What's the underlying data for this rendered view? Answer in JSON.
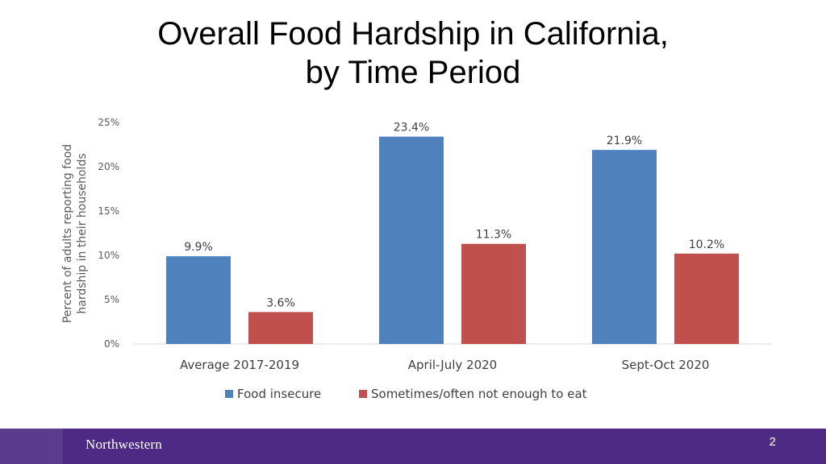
{
  "slide": {
    "title_line1": "Overall Food Hardship in California,",
    "title_line2": "by Time Period",
    "page_number": "2",
    "footer_logo": "Northwestern"
  },
  "colors": {
    "series_food_insecure": "#4f81bd",
    "series_not_enough": "#c0504d",
    "footer_bg": "#4e2a84"
  },
  "chart_data": {
    "type": "bar",
    "title": "Overall Food Hardship in California, by Time Period",
    "categories": [
      "Average 2017-2019",
      "April-July 2020",
      "Sept-Oct 2020"
    ],
    "series": [
      {
        "name": "Food insecure",
        "values": [
          9.9,
          23.4,
          21.9
        ],
        "labels": [
          "9.9%",
          "23.4%",
          "21.9%"
        ]
      },
      {
        "name": "Sometimes/often not enough to eat",
        "values": [
          3.6,
          11.3,
          10.2
        ],
        "labels": [
          "3.6%",
          "11.3%",
          "10.2%"
        ]
      }
    ],
    "ylabel_line1": "Percent of adults reporting food",
    "ylabel_line2": "hardship in their households",
    "xlabel": "",
    "ylim": [
      0,
      25
    ],
    "yticks": [
      0,
      5,
      10,
      15,
      20,
      25
    ],
    "ytick_labels": [
      "0%",
      "5%",
      "10%",
      "15%",
      "20%",
      "25%"
    ],
    "grid": false,
    "legend_position": "bottom-center"
  }
}
